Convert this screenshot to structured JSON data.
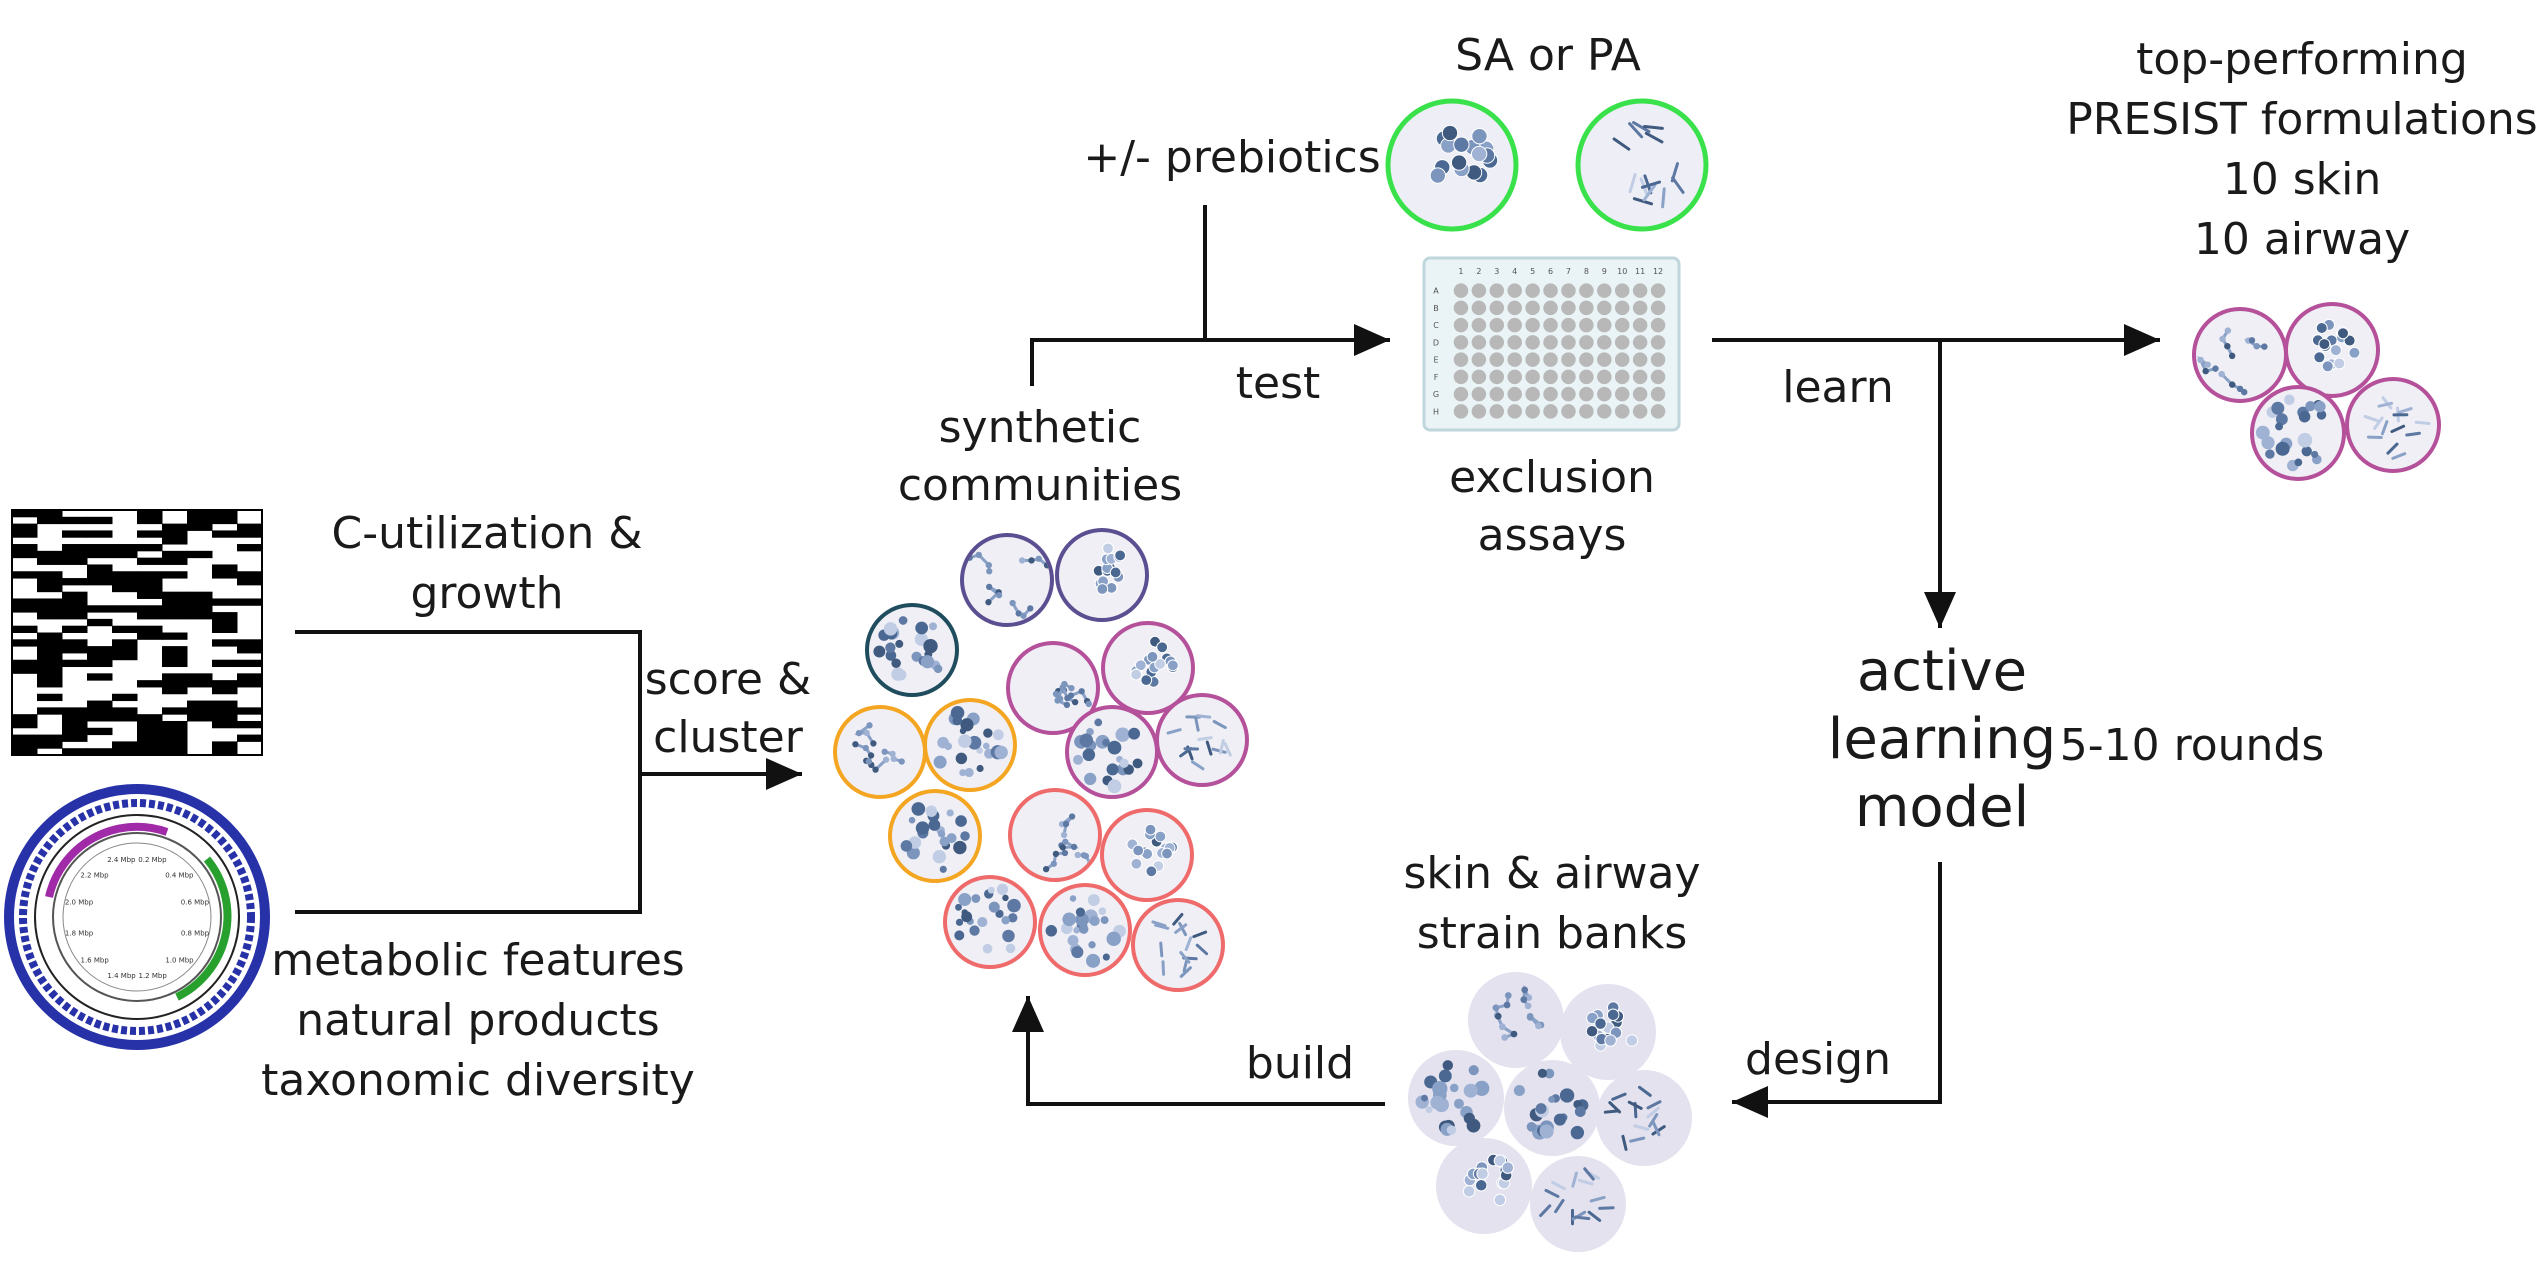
{
  "labels": {
    "c_utilization": [
      "C-utilization &",
      "growth"
    ],
    "metabolic": [
      "metabolic features",
      "natural products",
      "taxonomic diversity"
    ],
    "score_cluster": [
      "score &",
      "cluster"
    ],
    "synthetic_communities": [
      "synthetic",
      "communities"
    ],
    "prebiotics": "+/- prebiotics",
    "test": "test",
    "sa_pa": "SA or PA",
    "exclusion_assays": [
      "exclusion",
      "assays"
    ],
    "learn": "learn",
    "top_performing": [
      "top-performing",
      "PRESIST formulations",
      "10 skin",
      "10 airway"
    ],
    "active_learning": [
      "active",
      "learning",
      "model"
    ],
    "rounds": "5-10 rounds",
    "strain_banks": [
      "skin & airway",
      "strain banks"
    ],
    "design": "design",
    "build": "build"
  },
  "plate": {
    "col_labels": [
      "1",
      "2",
      "3",
      "4",
      "5",
      "6",
      "7",
      "8",
      "9",
      "10",
      "11",
      "12"
    ],
    "row_labels": [
      "A",
      "B",
      "C",
      "D",
      "E",
      "F",
      "G",
      "H"
    ]
  },
  "genome_map": {
    "ring_labels": [
      "0.2 Mbp",
      "0.4 Mbp",
      "0.6 Mbp",
      "0.8 Mbp",
      "1.0 Mbp",
      "1.2 Mbp",
      "1.4 Mbp",
      "1.6 Mbp",
      "1.8 Mbp",
      "2.0 Mbp",
      "2.2 Mbp",
      "2.4 Mbp"
    ]
  },
  "colors": {
    "line": "#111111",
    "navy": "#1f4d5e",
    "purple": "#5b4e91",
    "magenta": "#b5509a",
    "orange": "#f4a623",
    "coral": "#ef6a6a",
    "green": "#39e14a",
    "plate_well": "#b8b8b8",
    "plate_bg": "#eaf3f5",
    "bank_bg": "#e3e2ee",
    "genome_blue": "#2832a8",
    "genome_purple": "#a02aa8",
    "genome_green": "#28a02e"
  }
}
